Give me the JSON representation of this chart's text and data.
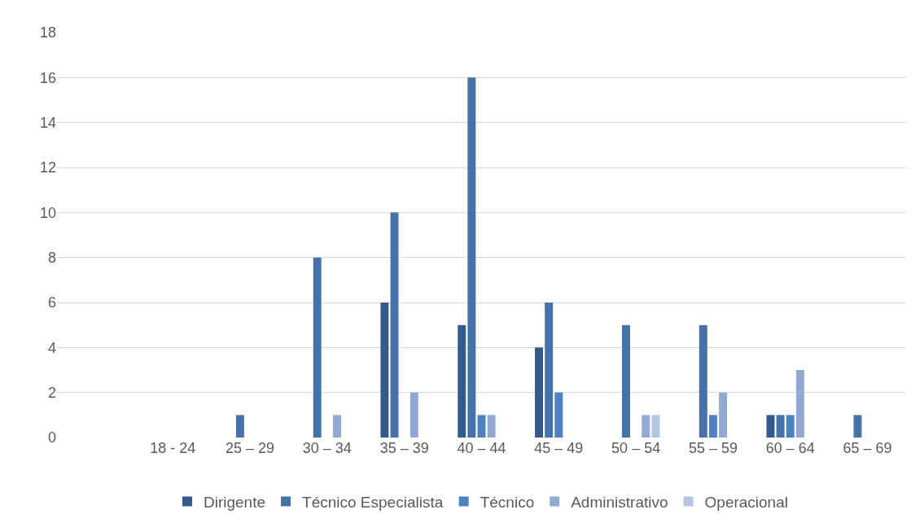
{
  "chart_data": {
    "type": "bar",
    "categories": [
      null,
      "18 - 24",
      "25 – 29",
      "30 – 34",
      "35 – 39",
      "40 – 44",
      "45 – 49",
      "50 – 54",
      "55 – 59",
      "60 – 64",
      "65 – 69"
    ],
    "series": [
      {
        "name": "Dirigente",
        "color": "#345b8c",
        "values": [
          null,
          null,
          null,
          null,
          6,
          5,
          4,
          null,
          null,
          1,
          null
        ]
      },
      {
        "name": "Técnico Especialista",
        "color": "#4472a9",
        "values": [
          null,
          null,
          1,
          8,
          10,
          16,
          6,
          5,
          5,
          1,
          1
        ]
      },
      {
        "name": "Técnico",
        "color": "#4d82c2",
        "values": [
          null,
          null,
          null,
          null,
          null,
          1,
          2,
          null,
          1,
          1,
          null
        ]
      },
      {
        "name": "Administrativo",
        "color": "#91a9d3",
        "values": [
          null,
          null,
          null,
          1,
          2,
          1,
          null,
          1,
          2,
          3,
          null
        ]
      },
      {
        "name": "Operacional",
        "color": "#b5c6e5",
        "values": [
          null,
          null,
          null,
          null,
          null,
          null,
          null,
          1,
          null,
          null,
          null
        ]
      }
    ],
    "ylim": [
      0,
      18
    ],
    "yticks": [
      0,
      2,
      4,
      6,
      8,
      10,
      12,
      14,
      16,
      18
    ],
    "grid": "y",
    "legend": "bottom"
  }
}
